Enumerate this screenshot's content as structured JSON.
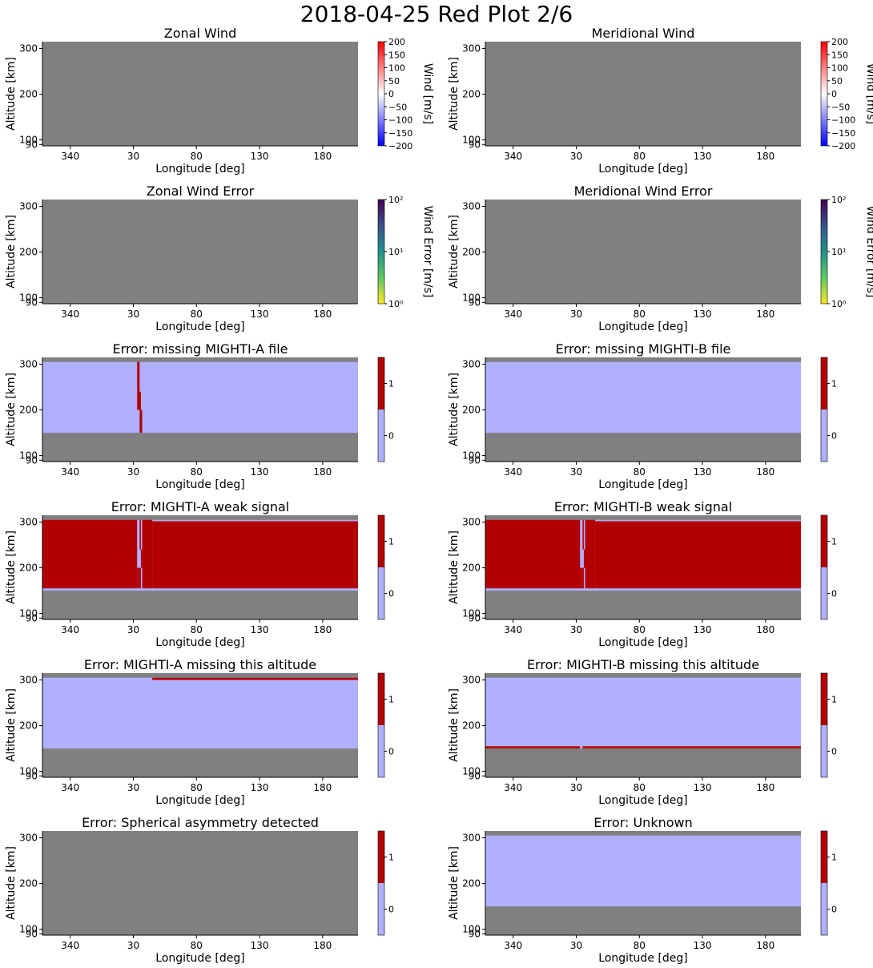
{
  "figure": {
    "title": "2018-04-25 Red Plot 2/6"
  },
  "colors": {
    "no_data": "#808080",
    "flag_off": "#b0b0ff",
    "flag_on": "#b20000",
    "axis": "#000000"
  },
  "chart_data": [
    {
      "type": "heatmap",
      "title": "Zonal Wind",
      "xlabel": "Longitude [deg]",
      "ylabel": "Altitude [km]",
      "x_ticks": [
        "340",
        "30",
        "80",
        "130",
        "180"
      ],
      "y_ticks": [
        "90",
        "100",
        "200",
        "300"
      ],
      "xlim_deg": [
        -42,
        208
      ],
      "ylim_km": [
        87,
        315
      ],
      "data_band_km": null,
      "flag_regions": [],
      "colorbar": {
        "kind": "diverging",
        "label": "Wind [m/s]",
        "range": [
          -200,
          200
        ],
        "ticks": [
          "200",
          "150",
          "100",
          "50",
          "0",
          "−50",
          "−100",
          "−150",
          "−200"
        ]
      }
    },
    {
      "type": "heatmap",
      "title": "Meridional Wind",
      "xlabel": "Longitude [deg]",
      "ylabel": "Altitude [km]",
      "x_ticks": [
        "340",
        "30",
        "80",
        "130",
        "180"
      ],
      "y_ticks": [
        "90",
        "100",
        "200",
        "300"
      ],
      "xlim_deg": [
        -42,
        208
      ],
      "ylim_km": [
        87,
        315
      ],
      "data_band_km": null,
      "flag_regions": [],
      "colorbar": {
        "kind": "diverging",
        "label": "Wind [m/s]",
        "range": [
          -200,
          200
        ],
        "ticks": [
          "200",
          "150",
          "100",
          "50",
          "0",
          "−50",
          "−100",
          "−150",
          "−200"
        ]
      }
    },
    {
      "type": "heatmap",
      "title": "Zonal Wind Error",
      "xlabel": "Longitude [deg]",
      "ylabel": "Altitude [km]",
      "x_ticks": [
        "340",
        "30",
        "80",
        "130",
        "180"
      ],
      "y_ticks": [
        "90",
        "100",
        "200",
        "300"
      ],
      "xlim_deg": [
        -42,
        208
      ],
      "ylim_km": [
        87,
        315
      ],
      "data_band_km": null,
      "flag_regions": [],
      "colorbar": {
        "kind": "log",
        "label": "Wind Error [m/s]",
        "range": [
          1,
          100
        ],
        "ticks": [
          "10²",
          "10¹",
          "10⁰"
        ]
      }
    },
    {
      "type": "heatmap",
      "title": "Meridional Wind Error",
      "xlabel": "Longitude [deg]",
      "ylabel": "Altitude [km]",
      "x_ticks": [
        "340",
        "30",
        "80",
        "130",
        "180"
      ],
      "y_ticks": [
        "90",
        "100",
        "200",
        "300"
      ],
      "xlim_deg": [
        -42,
        208
      ],
      "ylim_km": [
        87,
        315
      ],
      "data_band_km": null,
      "flag_regions": [],
      "colorbar": {
        "kind": "log",
        "label": "Wind Error [m/s]",
        "range": [
          1,
          100
        ],
        "ticks": [
          "10²",
          "10¹",
          "10⁰"
        ]
      }
    },
    {
      "type": "heatmap",
      "title": "Error: missing MIGHTI-A file",
      "xlabel": "Longitude [deg]",
      "ylabel": "Altitude [km]",
      "x_ticks": [
        "340",
        "30",
        "80",
        "130",
        "180"
      ],
      "y_ticks": [
        "90",
        "100",
        "200",
        "300"
      ],
      "xlim_deg": [
        -42,
        208
      ],
      "ylim_km": [
        87,
        315
      ],
      "data_band_km": [
        150,
        305
      ],
      "flag_regions": [
        {
          "lon": [
            33,
            35
          ],
          "alt": [
            240,
            305
          ]
        },
        {
          "lon": [
            33,
            36
          ],
          "alt": [
            200,
            240
          ]
        },
        {
          "lon": [
            35,
            37
          ],
          "alt": [
            150,
            200
          ]
        }
      ],
      "colorbar": {
        "kind": "binary",
        "label": "",
        "ticks": [
          "1",
          "0"
        ]
      }
    },
    {
      "type": "heatmap",
      "title": "Error: missing MIGHTI-B file",
      "xlabel": "Longitude [deg]",
      "ylabel": "Altitude [km]",
      "x_ticks": [
        "340",
        "30",
        "80",
        "130",
        "180"
      ],
      "y_ticks": [
        "90",
        "100",
        "200",
        "300"
      ],
      "xlim_deg": [
        -42,
        208
      ],
      "ylim_km": [
        87,
        315
      ],
      "data_band_km": [
        150,
        305
      ],
      "flag_regions": [],
      "colorbar": {
        "kind": "binary",
        "label": "",
        "ticks": [
          "1",
          "0"
        ]
      }
    },
    {
      "type": "heatmap",
      "title": "Error: MIGHTI-A weak signal",
      "xlabel": "Longitude [deg]",
      "ylabel": "Altitude [km]",
      "x_ticks": [
        "340",
        "30",
        "80",
        "130",
        "180"
      ],
      "y_ticks": [
        "90",
        "100",
        "200",
        "300"
      ],
      "xlim_deg": [
        -42,
        208
      ],
      "ylim_km": [
        87,
        315
      ],
      "data_band_km": [
        150,
        305
      ],
      "flag_regions": [
        {
          "lon": [
            -42,
            33
          ],
          "alt": [
            155,
            305
          ]
        },
        {
          "lon": [
            35,
            36
          ],
          "alt": [
            240,
            305
          ]
        },
        {
          "lon": [
            36,
            37
          ],
          "alt": [
            200,
            240
          ]
        },
        {
          "lon": [
            37,
            45
          ],
          "alt": [
            155,
            305
          ]
        },
        {
          "lon": [
            45,
            208
          ],
          "alt": [
            155,
            302
          ]
        },
        {
          "lon": [
            33,
            35
          ],
          "alt": [
            155,
            200
          ]
        },
        {
          "lon": [
            35,
            36
          ],
          "alt": [
            155,
            200
          ]
        }
      ],
      "colorbar": {
        "kind": "binary",
        "label": "",
        "ticks": [
          "1",
          "0"
        ]
      }
    },
    {
      "type": "heatmap",
      "title": "Error: MIGHTI-B weak signal",
      "xlabel": "Longitude [deg]",
      "ylabel": "Altitude [km]",
      "x_ticks": [
        "340",
        "30",
        "80",
        "130",
        "180"
      ],
      "y_ticks": [
        "90",
        "100",
        "200",
        "300"
      ],
      "xlim_deg": [
        -42,
        208
      ],
      "ylim_km": [
        87,
        315
      ],
      "data_band_km": [
        150,
        305
      ],
      "flag_regions": [
        {
          "lon": [
            -42,
            33
          ],
          "alt": [
            155,
            305
          ]
        },
        {
          "lon": [
            35,
            36
          ],
          "alt": [
            240,
            305
          ]
        },
        {
          "lon": [
            35,
            36
          ],
          "alt": [
            155,
            200
          ]
        },
        {
          "lon": [
            36,
            37
          ],
          "alt": [
            200,
            240
          ]
        },
        {
          "lon": [
            33,
            35
          ],
          "alt": [
            155,
            200
          ]
        },
        {
          "lon": [
            37,
            45
          ],
          "alt": [
            155,
            305
          ]
        },
        {
          "lon": [
            45,
            208
          ],
          "alt": [
            155,
            302
          ]
        }
      ],
      "colorbar": {
        "kind": "binary",
        "label": "",
        "ticks": [
          "1",
          "0"
        ]
      }
    },
    {
      "type": "heatmap",
      "title": "Error: MIGHTI-A missing this altitude",
      "xlabel": "Longitude [deg]",
      "ylabel": "Altitude [km]",
      "x_ticks": [
        "340",
        "30",
        "80",
        "130",
        "180"
      ],
      "y_ticks": [
        "90",
        "100",
        "200",
        "300"
      ],
      "xlim_deg": [
        -42,
        208
      ],
      "ylim_km": [
        87,
        315
      ],
      "data_band_km": [
        150,
        305
      ],
      "flag_regions": [
        {
          "lon": [
            45,
            208
          ],
          "alt": [
            300,
            305
          ]
        }
      ],
      "colorbar": {
        "kind": "binary",
        "label": "",
        "ticks": [
          "1",
          "0"
        ]
      }
    },
    {
      "type": "heatmap",
      "title": "Error: MIGHTI-B missing this altitude",
      "xlabel": "Longitude [deg]",
      "ylabel": "Altitude [km]",
      "x_ticks": [
        "340",
        "30",
        "80",
        "130",
        "180"
      ],
      "y_ticks": [
        "90",
        "100",
        "200",
        "300"
      ],
      "xlim_deg": [
        -42,
        208
      ],
      "ylim_km": [
        87,
        315
      ],
      "data_band_km": [
        150,
        305
      ],
      "flag_regions": [
        {
          "lon": [
            -42,
            33
          ],
          "alt": [
            150,
            155
          ]
        },
        {
          "lon": [
            35,
            208
          ],
          "alt": [
            150,
            155
          ]
        }
      ],
      "colorbar": {
        "kind": "binary",
        "label": "",
        "ticks": [
          "1",
          "0"
        ]
      }
    },
    {
      "type": "heatmap",
      "title": "Error: Spherical asymmetry detected",
      "xlabel": "Longitude [deg]",
      "ylabel": "Altitude [km]",
      "x_ticks": [
        "340",
        "30",
        "80",
        "130",
        "180"
      ],
      "y_ticks": [
        "90",
        "100",
        "200",
        "300"
      ],
      "xlim_deg": [
        -42,
        208
      ],
      "ylim_km": [
        87,
        315
      ],
      "data_band_km": null,
      "flag_regions": [],
      "colorbar": {
        "kind": "binary",
        "label": "",
        "ticks": [
          "1",
          "0"
        ]
      }
    },
    {
      "type": "heatmap",
      "title": "Error: Unknown",
      "xlabel": "Longitude [deg]",
      "ylabel": "Altitude [km]",
      "x_ticks": [
        "340",
        "30",
        "80",
        "130",
        "180"
      ],
      "y_ticks": [
        "90",
        "100",
        "200",
        "300"
      ],
      "xlim_deg": [
        -42,
        208
      ],
      "ylim_km": [
        87,
        315
      ],
      "data_band_km": [
        150,
        305
      ],
      "flag_regions": [],
      "colorbar": {
        "kind": "binary",
        "label": "",
        "ticks": [
          "1",
          "0"
        ]
      }
    }
  ]
}
